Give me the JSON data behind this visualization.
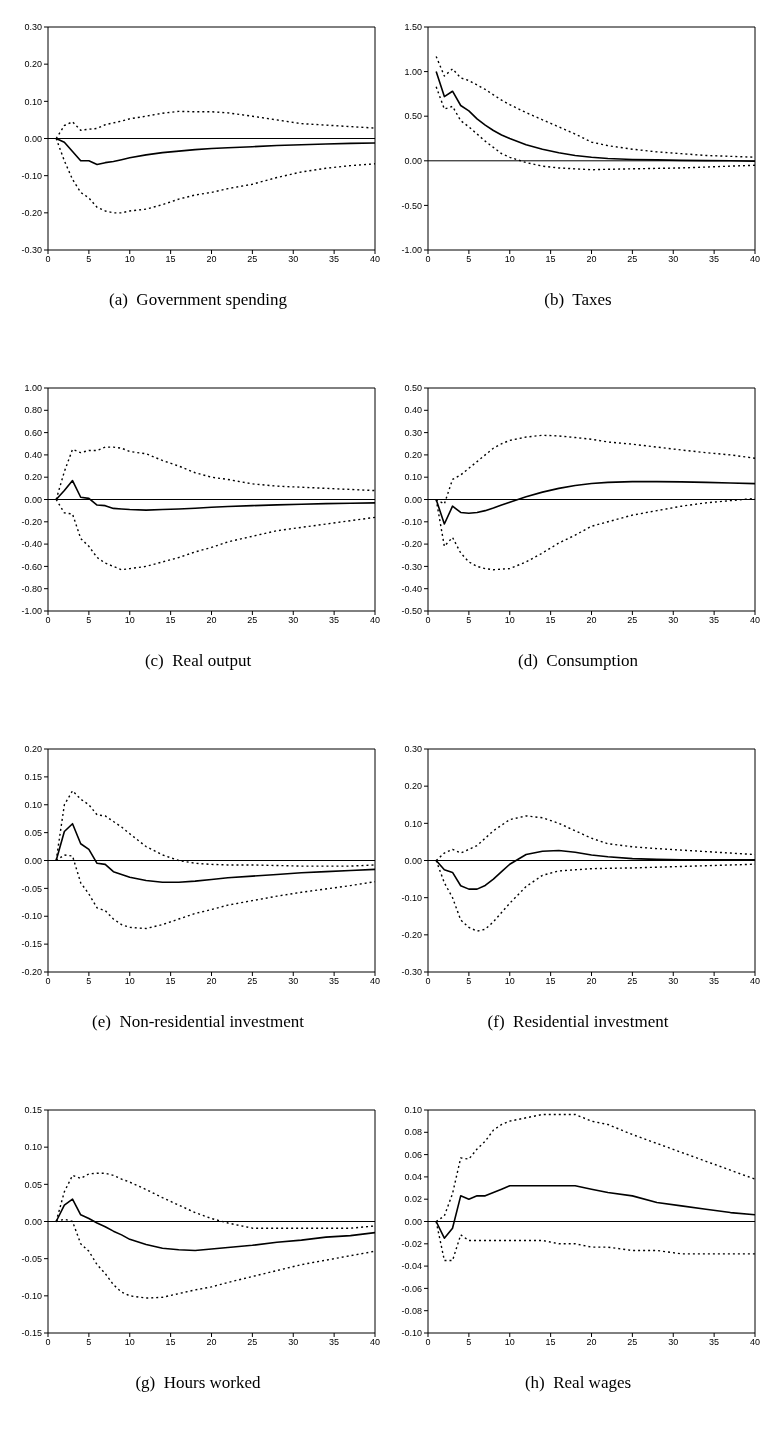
{
  "chart_data": [
    {
      "type": "line",
      "title": "(a)  Government spending",
      "x": [
        1,
        2,
        3,
        4,
        5,
        6,
        7,
        8,
        9,
        10,
        12,
        14,
        16,
        18,
        20,
        22,
        25,
        28,
        31,
        34,
        37,
        40
      ],
      "xlim": [
        0,
        40
      ],
      "xticks": [
        0,
        5,
        10,
        15,
        20,
        25,
        30,
        35,
        40
      ],
      "ylim": [
        -0.3,
        0.3
      ],
      "yticks": [
        {
          "value": -0.3,
          "label": "-0.30"
        },
        {
          "value": -0.2,
          "label": "-0.20"
        },
        {
          "value": -0.1,
          "label": "-0.10"
        },
        {
          "value": 0,
          "label": "0.00"
        },
        {
          "value": 0.1,
          "label": "0.10"
        },
        {
          "value": 0.2,
          "label": "0.20"
        },
        {
          "value": 0.3,
          "label": "0.30"
        }
      ],
      "ref_lines": [
        {
          "axis": "y",
          "value": 0,
          "color": "#000000"
        }
      ],
      "series": [
        {
          "color": "#000000",
          "line_style": "solid",
          "values": [
            0,
            -0.01,
            -0.035,
            -0.06,
            -0.06,
            -0.07,
            -0.065,
            -0.062,
            -0.057,
            -0.052,
            -0.044,
            -0.038,
            -0.034,
            -0.03,
            -0.027,
            -0.025,
            -0.022,
            -0.019,
            -0.017,
            -0.015,
            -0.013,
            -0.012
          ]
        },
        {
          "color": "#000000",
          "line_style": "dotted",
          "values": [
            0,
            0.035,
            0.045,
            0.022,
            0.025,
            0.027,
            0.037,
            0.042,
            0.047,
            0.053,
            0.06,
            0.068,
            0.073,
            0.072,
            0.072,
            0.069,
            0.06,
            0.05,
            0.04,
            0.036,
            0.032,
            0.028
          ]
        },
        {
          "color": "#000000",
          "line_style": "dotted",
          "values": [
            0,
            -0.06,
            -0.11,
            -0.145,
            -0.16,
            -0.185,
            -0.195,
            -0.2,
            -0.2,
            -0.195,
            -0.19,
            -0.178,
            -0.163,
            -0.152,
            -0.145,
            -0.135,
            -0.123,
            -0.105,
            -0.09,
            -0.08,
            -0.073,
            -0.068
          ]
        }
      ]
    },
    {
      "type": "line",
      "title": "(b)  Taxes",
      "x": [
        1,
        2,
        3,
        4,
        5,
        6,
        7,
        8,
        9,
        10,
        12,
        14,
        16,
        18,
        20,
        22,
        25,
        28,
        31,
        34,
        37,
        40
      ],
      "xlim": [
        0,
        40
      ],
      "xticks": [
        0,
        5,
        10,
        15,
        20,
        25,
        30,
        35,
        40
      ],
      "ylim": [
        -1,
        1.5
      ],
      "yticks": [
        {
          "value": -1,
          "label": "-1.00"
        },
        {
          "value": -0.5,
          "label": "-0.50"
        },
        {
          "value": 0,
          "label": "0.00"
        },
        {
          "value": 0.5,
          "label": "0.50"
        },
        {
          "value": 1,
          "label": "1.00"
        },
        {
          "value": 1.5,
          "label": "1.50"
        }
      ],
      "ref_lines": [
        {
          "axis": "y",
          "value": 0,
          "color": "#000000"
        }
      ],
      "series": [
        {
          "color": "#000000",
          "line_style": "solid",
          "values": [
            1.0,
            0.72,
            0.78,
            0.62,
            0.56,
            0.47,
            0.4,
            0.34,
            0.29,
            0.25,
            0.18,
            0.13,
            0.09,
            0.06,
            0.04,
            0.025,
            0.015,
            0.01,
            0.005,
            0.002,
            0.0,
            -0.005
          ]
        },
        {
          "color": "#000000",
          "line_style": "dotted",
          "values": [
            1.17,
            0.95,
            1.03,
            0.93,
            0.9,
            0.85,
            0.8,
            0.74,
            0.68,
            0.63,
            0.54,
            0.46,
            0.38,
            0.3,
            0.21,
            0.17,
            0.13,
            0.1,
            0.08,
            0.06,
            0.05,
            0.04
          ]
        },
        {
          "color": "#000000",
          "line_style": "dotted",
          "values": [
            0.83,
            0.58,
            0.61,
            0.45,
            0.38,
            0.3,
            0.22,
            0.15,
            0.08,
            0.04,
            -0.02,
            -0.06,
            -0.08,
            -0.09,
            -0.1,
            -0.095,
            -0.09,
            -0.085,
            -0.08,
            -0.07,
            -0.06,
            -0.05
          ]
        }
      ]
    },
    {
      "type": "line",
      "title": "(c)  Real output",
      "x": [
        1,
        2,
        3,
        4,
        5,
        6,
        7,
        8,
        9,
        10,
        12,
        14,
        16,
        18,
        20,
        22,
        25,
        28,
        31,
        34,
        37,
        40
      ],
      "xlim": [
        0,
        40
      ],
      "xticks": [
        0,
        5,
        10,
        15,
        20,
        25,
        30,
        35,
        40
      ],
      "ylim": [
        -1,
        1
      ],
      "yticks": [
        {
          "value": -1,
          "label": "-1.00"
        },
        {
          "value": -0.8,
          "label": "-0.80"
        },
        {
          "value": -0.6,
          "label": "-0.60"
        },
        {
          "value": -0.4,
          "label": "-0.40"
        },
        {
          "value": -0.2,
          "label": "-0.20"
        },
        {
          "value": 0,
          "label": "0.00"
        },
        {
          "value": 0.2,
          "label": "0.20"
        },
        {
          "value": 0.4,
          "label": "0.40"
        },
        {
          "value": 0.6,
          "label": "0.60"
        },
        {
          "value": 0.8,
          "label": "0.80"
        },
        {
          "value": 1,
          "label": "1.00"
        }
      ],
      "ref_lines": [
        {
          "axis": "y",
          "value": 0,
          "color": "#000000"
        }
      ],
      "series": [
        {
          "color": "#000000",
          "line_style": "solid",
          "values": [
            0,
            0.08,
            0.17,
            0.02,
            0.01,
            -0.05,
            -0.055,
            -0.08,
            -0.085,
            -0.09,
            -0.095,
            -0.09,
            -0.085,
            -0.078,
            -0.07,
            -0.063,
            -0.055,
            -0.048,
            -0.042,
            -0.037,
            -0.033,
            -0.03
          ]
        },
        {
          "color": "#000000",
          "line_style": "dotted",
          "values": [
            0,
            0.25,
            0.45,
            0.42,
            0.44,
            0.44,
            0.47,
            0.47,
            0.46,
            0.43,
            0.41,
            0.35,
            0.3,
            0.24,
            0.2,
            0.18,
            0.14,
            0.12,
            0.11,
            0.1,
            0.09,
            0.08
          ]
        },
        {
          "color": "#000000",
          "line_style": "dotted",
          "values": [
            0,
            -0.12,
            -0.13,
            -0.35,
            -0.42,
            -0.52,
            -0.57,
            -0.6,
            -0.63,
            -0.62,
            -0.6,
            -0.56,
            -0.52,
            -0.47,
            -0.43,
            -0.38,
            -0.33,
            -0.28,
            -0.25,
            -0.22,
            -0.19,
            -0.16
          ]
        }
      ]
    },
    {
      "type": "line",
      "title": "(d)  Consumption",
      "x": [
        1,
        2,
        3,
        4,
        5,
        6,
        7,
        8,
        9,
        10,
        12,
        14,
        16,
        18,
        20,
        22,
        25,
        28,
        31,
        34,
        37,
        40
      ],
      "xlim": [
        0,
        40
      ],
      "xticks": [
        0,
        5,
        10,
        15,
        20,
        25,
        30,
        35,
        40
      ],
      "ylim": [
        -0.5,
        0.5
      ],
      "yticks": [
        {
          "value": -0.5,
          "label": "-0.50"
        },
        {
          "value": -0.4,
          "label": "-0.40"
        },
        {
          "value": -0.3,
          "label": "-0.30"
        },
        {
          "value": -0.2,
          "label": "-0.20"
        },
        {
          "value": -0.1,
          "label": "-0.10"
        },
        {
          "value": 0,
          "label": "0.00"
        },
        {
          "value": 0.1,
          "label": "0.10"
        },
        {
          "value": 0.2,
          "label": "0.20"
        },
        {
          "value": 0.3,
          "label": "0.30"
        },
        {
          "value": 0.4,
          "label": "0.40"
        },
        {
          "value": 0.5,
          "label": "0.50"
        }
      ],
      "ref_lines": [
        {
          "axis": "y",
          "value": 0,
          "color": "#000000"
        }
      ],
      "series": [
        {
          "color": "#000000",
          "line_style": "solid",
          "values": [
            0,
            -0.11,
            -0.03,
            -0.058,
            -0.062,
            -0.058,
            -0.05,
            -0.038,
            -0.025,
            -0.012,
            0.012,
            0.033,
            0.05,
            0.063,
            0.072,
            0.077,
            0.08,
            0.08,
            0.079,
            0.077,
            0.074,
            0.071
          ]
        },
        {
          "color": "#000000",
          "line_style": "dotted",
          "values": [
            0,
            -0.02,
            0.09,
            0.11,
            0.14,
            0.17,
            0.2,
            0.23,
            0.25,
            0.265,
            0.28,
            0.288,
            0.285,
            0.278,
            0.27,
            0.258,
            0.248,
            0.235,
            0.222,
            0.21,
            0.2,
            0.185
          ]
        },
        {
          "color": "#000000",
          "line_style": "dotted",
          "values": [
            0,
            -0.21,
            -0.17,
            -0.24,
            -0.28,
            -0.3,
            -0.31,
            -0.315,
            -0.312,
            -0.31,
            -0.28,
            -0.24,
            -0.195,
            -0.16,
            -0.12,
            -0.1,
            -0.07,
            -0.05,
            -0.03,
            -0.015,
            -0.005,
            0.005
          ]
        }
      ]
    },
    {
      "type": "line",
      "title": "(e)  Non-residential investment",
      "x": [
        1,
        2,
        3,
        4,
        5,
        6,
        7,
        8,
        9,
        10,
        12,
        14,
        16,
        18,
        20,
        22,
        25,
        28,
        31,
        34,
        37,
        40
      ],
      "xlim": [
        0,
        40
      ],
      "xticks": [
        0,
        5,
        10,
        15,
        20,
        25,
        30,
        35,
        40
      ],
      "ylim": [
        -0.2,
        0.2
      ],
      "yticks": [
        {
          "value": -0.2,
          "label": "-0.20"
        },
        {
          "value": -0.15,
          "label": "-0.15"
        },
        {
          "value": -0.1,
          "label": "-0.10"
        },
        {
          "value": -0.05,
          "label": "-0.05"
        },
        {
          "value": 0,
          "label": "0.00"
        },
        {
          "value": 0.05,
          "label": "0.05"
        },
        {
          "value": 0.1,
          "label": "0.10"
        },
        {
          "value": 0.15,
          "label": "0.15"
        },
        {
          "value": 0.2,
          "label": "0.20"
        }
      ],
      "ref_lines": [
        {
          "axis": "y",
          "value": 0,
          "color": "#000000"
        }
      ],
      "series": [
        {
          "color": "#000000",
          "line_style": "solid",
          "values": [
            0,
            0.052,
            0.066,
            0.03,
            0.02,
            -0.005,
            -0.007,
            -0.02,
            -0.025,
            -0.03,
            -0.036,
            -0.039,
            -0.039,
            -0.037,
            -0.034,
            -0.031,
            -0.028,
            -0.025,
            -0.022,
            -0.02,
            -0.018,
            -0.016
          ]
        },
        {
          "color": "#000000",
          "line_style": "dotted",
          "values": [
            0,
            0.1,
            0.125,
            0.11,
            0.1,
            0.082,
            0.08,
            0.07,
            0.06,
            0.048,
            0.025,
            0.01,
            0.0,
            -0.005,
            -0.007,
            -0.008,
            -0.008,
            -0.009,
            -0.01,
            -0.01,
            -0.01,
            -0.008
          ]
        },
        {
          "color": "#000000",
          "line_style": "dotted",
          "values": [
            0,
            0.01,
            0.008,
            -0.04,
            -0.06,
            -0.085,
            -0.09,
            -0.105,
            -0.115,
            -0.12,
            -0.122,
            -0.115,
            -0.105,
            -0.095,
            -0.088,
            -0.08,
            -0.072,
            -0.064,
            -0.057,
            -0.051,
            -0.045,
            -0.038
          ]
        }
      ]
    },
    {
      "type": "line",
      "title": "(f)  Residential investment",
      "x": [
        1,
        2,
        3,
        4,
        5,
        6,
        7,
        8,
        9,
        10,
        12,
        14,
        16,
        18,
        20,
        22,
        25,
        28,
        31,
        34,
        37,
        40
      ],
      "xlim": [
        0,
        40
      ],
      "xticks": [
        0,
        5,
        10,
        15,
        20,
        25,
        30,
        35,
        40
      ],
      "ylim": [
        -0.3,
        0.3
      ],
      "yticks": [
        {
          "value": -0.3,
          "label": "-0.30"
        },
        {
          "value": -0.2,
          "label": "-0.20"
        },
        {
          "value": -0.1,
          "label": "-0.10"
        },
        {
          "value": 0,
          "label": "0.00"
        },
        {
          "value": 0.1,
          "label": "0.10"
        },
        {
          "value": 0.2,
          "label": "0.20"
        },
        {
          "value": 0.3,
          "label": "0.30"
        }
      ],
      "ref_lines": [
        {
          "axis": "y",
          "value": 0,
          "color": "#000000"
        }
      ],
      "series": [
        {
          "color": "#000000",
          "line_style": "solid",
          "values": [
            0,
            -0.025,
            -0.032,
            -0.068,
            -0.077,
            -0.077,
            -0.067,
            -0.05,
            -0.03,
            -0.01,
            0.016,
            0.025,
            0.027,
            0.022,
            0.015,
            0.01,
            0.005,
            0.003,
            0.002,
            0.002,
            0.002,
            0.002
          ]
        },
        {
          "color": "#000000",
          "line_style": "dotted",
          "values": [
            0,
            0.02,
            0.03,
            0.02,
            0.03,
            0.04,
            0.06,
            0.08,
            0.095,
            0.11,
            0.12,
            0.115,
            0.1,
            0.08,
            0.06,
            0.045,
            0.037,
            0.032,
            0.028,
            0.024,
            0.02,
            0.016
          ]
        },
        {
          "color": "#000000",
          "line_style": "dotted",
          "values": [
            0,
            -0.06,
            -0.1,
            -0.16,
            -0.18,
            -0.19,
            -0.185,
            -0.165,
            -0.14,
            -0.115,
            -0.07,
            -0.04,
            -0.028,
            -0.025,
            -0.022,
            -0.021,
            -0.02,
            -0.018,
            -0.016,
            -0.014,
            -0.012,
            -0.01
          ]
        }
      ]
    },
    {
      "type": "line",
      "title": "(g)  Hours worked",
      "x": [
        1,
        2,
        3,
        4,
        5,
        6,
        7,
        8,
        9,
        10,
        12,
        14,
        16,
        18,
        20,
        22,
        25,
        28,
        31,
        34,
        37,
        40
      ],
      "xlim": [
        0,
        40
      ],
      "xticks": [
        0,
        5,
        10,
        15,
        20,
        25,
        30,
        35,
        40
      ],
      "ylim": [
        -0.15,
        0.15
      ],
      "yticks": [
        {
          "value": -0.15,
          "label": "-0.15"
        },
        {
          "value": -0.1,
          "label": "-0.10"
        },
        {
          "value": -0.05,
          "label": "-0.05"
        },
        {
          "value": 0,
          "label": "0.00"
        },
        {
          "value": 0.05,
          "label": "0.05"
        },
        {
          "value": 0.1,
          "label": "0.10"
        },
        {
          "value": 0.15,
          "label": "0.15"
        }
      ],
      "ref_lines": [
        {
          "axis": "y",
          "value": 0,
          "color": "#000000"
        }
      ],
      "series": [
        {
          "color": "#000000",
          "line_style": "solid",
          "values": [
            0,
            0.022,
            0.03,
            0.009,
            0.004,
            -0.002,
            -0.007,
            -0.013,
            -0.018,
            -0.024,
            -0.031,
            -0.036,
            -0.038,
            -0.039,
            -0.037,
            -0.035,
            -0.032,
            -0.028,
            -0.025,
            -0.021,
            -0.019,
            -0.015
          ]
        },
        {
          "color": "#000000",
          "line_style": "dotted",
          "values": [
            0,
            0.04,
            0.062,
            0.058,
            0.064,
            0.065,
            0.065,
            0.062,
            0.057,
            0.053,
            0.043,
            0.032,
            0.022,
            0.012,
            0.004,
            -0.002,
            -0.009,
            -0.009,
            -0.009,
            -0.009,
            -0.009,
            -0.006
          ]
        },
        {
          "color": "#000000",
          "line_style": "dotted",
          "values": [
            0,
            0.003,
            0,
            -0.03,
            -0.04,
            -0.058,
            -0.07,
            -0.085,
            -0.095,
            -0.1,
            -0.103,
            -0.102,
            -0.097,
            -0.092,
            -0.088,
            -0.082,
            -0.074,
            -0.066,
            -0.058,
            -0.052,
            -0.046,
            -0.04
          ]
        }
      ]
    },
    {
      "type": "line",
      "title": "(h)  Real wages",
      "x": [
        1,
        2,
        3,
        4,
        5,
        6,
        7,
        8,
        9,
        10,
        12,
        14,
        16,
        18,
        20,
        22,
        25,
        28,
        31,
        34,
        37,
        40
      ],
      "xlim": [
        0,
        40
      ],
      "xticks": [
        0,
        5,
        10,
        15,
        20,
        25,
        30,
        35,
        40
      ],
      "ylim": [
        -0.1,
        0.1
      ],
      "yticks": [
        {
          "value": -0.1,
          "label": "-0.10"
        },
        {
          "value": -0.08,
          "label": "-0.08"
        },
        {
          "value": -0.06,
          "label": "-0.06"
        },
        {
          "value": -0.04,
          "label": "-0.04"
        },
        {
          "value": -0.02,
          "label": "-0.02"
        },
        {
          "value": 0,
          "label": "0.00"
        },
        {
          "value": 0.02,
          "label": "0.02"
        },
        {
          "value": 0.04,
          "label": "0.04"
        },
        {
          "value": 0.06,
          "label": "0.06"
        },
        {
          "value": 0.08,
          "label": "0.08"
        },
        {
          "value": 0.1,
          "label": "0.10"
        }
      ],
      "ref_lines": [
        {
          "axis": "y",
          "value": 0,
          "color": "#000000"
        }
      ],
      "series": [
        {
          "color": "#000000",
          "line_style": "solid",
          "values": [
            0,
            -0.015,
            -0.006,
            0.023,
            0.02,
            0.023,
            0.023,
            0.026,
            0.029,
            0.032,
            0.032,
            0.032,
            0.032,
            0.032,
            0.029,
            0.026,
            0.023,
            0.017,
            0.014,
            0.011,
            0.008,
            0.006
          ]
        },
        {
          "color": "#000000",
          "line_style": "dotted",
          "values": [
            0,
            0.005,
            0.025,
            0.057,
            0.056,
            0.065,
            0.072,
            0.082,
            0.087,
            0.09,
            0.093,
            0.096,
            0.096,
            0.096,
            0.09,
            0.087,
            0.078,
            0.07,
            0.062,
            0.054,
            0.046,
            0.038
          ]
        },
        {
          "color": "#000000",
          "line_style": "dotted",
          "values": [
            0,
            -0.035,
            -0.035,
            -0.012,
            -0.017,
            -0.017,
            -0.017,
            -0.017,
            -0.017,
            -0.017,
            -0.017,
            -0.017,
            -0.02,
            -0.02,
            -0.023,
            -0.023,
            -0.026,
            -0.026,
            -0.029,
            -0.029,
            -0.029,
            -0.029
          ]
        }
      ]
    }
  ]
}
